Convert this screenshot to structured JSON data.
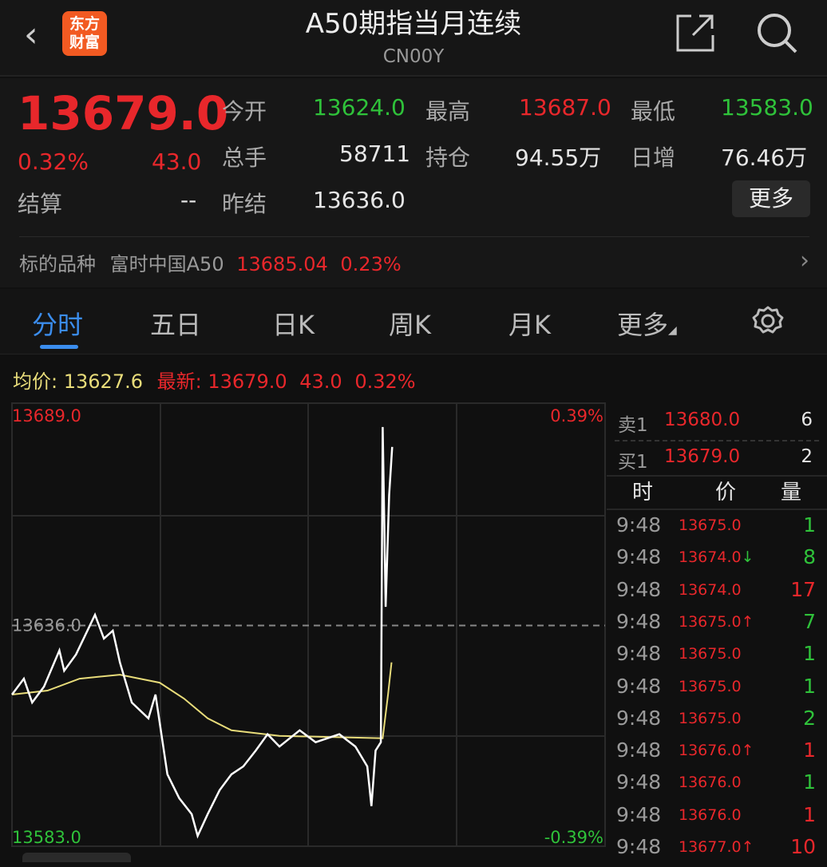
{
  "header": {
    "title": "A50期指当月连续",
    "code": "CN00Y",
    "logo_text": [
      "东方",
      "财富"
    ],
    "icons": [
      "back-chevron-icon",
      "share-icon",
      "search-icon"
    ]
  },
  "quote": {
    "last": "13679.0",
    "change_pct": "0.32%",
    "change": "43.0",
    "settle_label": "结算",
    "settle": "--",
    "open_label": "今开",
    "open": "13624.0",
    "high_label": "最高",
    "high": "13687.0",
    "low_label": "最低",
    "low": "13583.0",
    "volume_label": "总手",
    "volume": "58711",
    "oi_label": "持仓",
    "oi": "94.55万",
    "daily_inc_label": "日增",
    "daily_inc": "76.46万",
    "prev_settle_label": "昨结",
    "prev_settle": "13636.0",
    "more_label": "更多"
  },
  "underlying": {
    "label": "标的品种",
    "name": "富时中国A50",
    "price": "13685.04",
    "pct": "0.23%"
  },
  "tabs": [
    {
      "label": "分时",
      "active": true
    },
    {
      "label": "五日"
    },
    {
      "label": "日K"
    },
    {
      "label": "周K"
    },
    {
      "label": "月K"
    },
    {
      "label": "更多"
    }
  ],
  "info": {
    "avg_label": "均价:",
    "avg": "13627.6",
    "latest_label": "最新:",
    "latest": "13679.0",
    "change": "43.0",
    "pct": "0.32%"
  },
  "chart_data": {
    "type": "line",
    "ylim": [
      13583.0,
      13689.0
    ],
    "ref": 13636.0,
    "y_labels": {
      "top": "13689.0",
      "bottom": "13583.0",
      "ref": "13636.0",
      "top_pct": "0.39%",
      "bottom_pct": "-0.39%"
    },
    "series": [
      {
        "key": "price",
        "color": "#ffffff",
        "points": [
          [
            0,
            13618.6
          ],
          [
            2,
            13622.6
          ],
          [
            3.4,
            13616.6
          ],
          [
            5.4,
            13620.6
          ],
          [
            8,
            13629.7
          ],
          [
            8.8,
            13624.6
          ],
          [
            10.8,
            13628.7
          ],
          [
            14,
            13638.7
          ],
          [
            15.5,
            13632.7
          ],
          [
            17,
            13634.7
          ],
          [
            18.2,
            13626.7
          ],
          [
            20.2,
            13616.6
          ],
          [
            23,
            13612.6
          ],
          [
            24.2,
            13618.6
          ],
          [
            26.2,
            13598.5
          ],
          [
            28.2,
            13592.5
          ],
          [
            30.3,
            13588.5
          ],
          [
            31.3,
            13583.0
          ],
          [
            33,
            13588.5
          ],
          [
            35,
            13594.5
          ],
          [
            37,
            13598.5
          ],
          [
            39,
            13600.5
          ],
          [
            41.1,
            13604.5
          ],
          [
            43.1,
            13608.6
          ],
          [
            45.1,
            13605.5
          ],
          [
            48.5,
            13609.6
          ],
          [
            51.2,
            13606.6
          ],
          [
            55.2,
            13608.6
          ],
          [
            57.9,
            13605.5
          ],
          [
            59.9,
            13600.5
          ],
          [
            60.6,
            13590.5
          ],
          [
            61.3,
            13604.5
          ],
          [
            62.2,
            13606.6
          ],
          [
            62.5,
            13686.0
          ],
          [
            63,
            13640.7
          ],
          [
            63.6,
            13668.9
          ],
          [
            64.1,
            13681.0
          ]
        ]
      },
      {
        "key": "average",
        "color": "#e8dc7a",
        "points": [
          [
            0,
            13618.6
          ],
          [
            6,
            13619.6
          ],
          [
            11.4,
            13622.6
          ],
          [
            18.2,
            13623.6
          ],
          [
            24.9,
            13621.6
          ],
          [
            29,
            13617.6
          ],
          [
            33,
            13612.6
          ],
          [
            37,
            13609.6
          ],
          [
            45.1,
            13608.2
          ],
          [
            62.5,
            13607.6
          ],
          [
            63.4,
            13618.6
          ],
          [
            64,
            13626.7
          ]
        ]
      }
    ]
  },
  "book": {
    "ask_label": "卖1",
    "ask": "13680.0",
    "ask_vol": "6",
    "bid_label": "买1",
    "bid": "13679.0",
    "bid_vol": "2",
    "headers": [
      "时",
      "价",
      "量"
    ],
    "trades": [
      {
        "t": "9:48",
        "p": "13675.0",
        "arrow": "",
        "v": "1",
        "vc": "green"
      },
      {
        "t": "9:48",
        "p": "13674.0",
        "arrow": "↓",
        "v": "8",
        "vc": "green"
      },
      {
        "t": "9:48",
        "p": "13674.0",
        "arrow": "",
        "v": "17",
        "vc": "red"
      },
      {
        "t": "9:48",
        "p": "13675.0",
        "arrow": "↑",
        "v": "7",
        "vc": "green"
      },
      {
        "t": "9:48",
        "p": "13675.0",
        "arrow": "",
        "v": "1",
        "vc": "green"
      },
      {
        "t": "9:48",
        "p": "13675.0",
        "arrow": "",
        "v": "1",
        "vc": "green"
      },
      {
        "t": "9:48",
        "p": "13675.0",
        "arrow": "",
        "v": "2",
        "vc": "green"
      },
      {
        "t": "9:48",
        "p": "13676.0",
        "arrow": "↑",
        "v": "1",
        "vc": "red"
      },
      {
        "t": "9:48",
        "p": "13676.0",
        "arrow": "",
        "v": "1",
        "vc": "green"
      },
      {
        "t": "9:48",
        "p": "13676.0",
        "arrow": "",
        "v": "1",
        "vc": "red"
      },
      {
        "t": "9:48",
        "p": "13677.0",
        "arrow": "↑",
        "v": "10",
        "vc": "red"
      }
    ]
  }
}
